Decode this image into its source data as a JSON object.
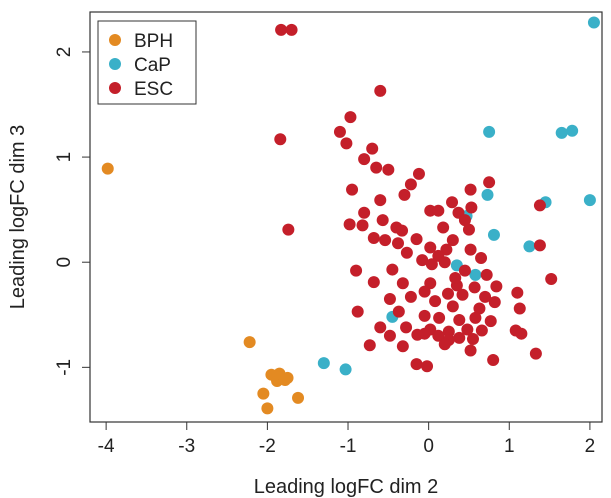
{
  "chart_data": {
    "type": "scatter",
    "xlabel": "Leading logFC dim 2",
    "ylabel": "Leading logFC dim 3",
    "xlim": [
      -4.2,
      2.15
    ],
    "ylim": [
      -1.52,
      2.38
    ],
    "x_ticks": [
      "-4",
      "-3",
      "-2",
      "-1",
      "0",
      "1",
      "2"
    ],
    "y_ticks": [
      "-1",
      "0",
      "1",
      "2"
    ],
    "grid": false,
    "legend_position": "top-left",
    "series": [
      {
        "name": "BPH",
        "color": "#e38a22",
        "points": [
          [
            -3.98,
            0.89
          ],
          [
            -2.22,
            -0.76
          ],
          [
            -2.05,
            -1.25
          ],
          [
            -1.95,
            -1.07
          ],
          [
            -1.88,
            -1.13
          ],
          [
            -1.85,
            -1.06
          ],
          [
            -1.78,
            -1.12
          ],
          [
            -1.75,
            -1.1
          ],
          [
            -1.62,
            -1.29
          ],
          [
            -2.0,
            -1.39
          ]
        ]
      },
      {
        "name": "CaP",
        "color": "#3ab0c8",
        "points": [
          [
            2.05,
            2.28
          ],
          [
            0.75,
            1.24
          ],
          [
            1.65,
            1.23
          ],
          [
            1.78,
            1.25
          ],
          [
            0.73,
            0.64
          ],
          [
            1.45,
            0.57
          ],
          [
            2.0,
            0.59
          ],
          [
            0.47,
            0.44
          ],
          [
            0.81,
            0.26
          ],
          [
            1.25,
            0.15
          ],
          [
            0.35,
            -0.03
          ],
          [
            0.58,
            -0.12
          ],
          [
            -0.45,
            -0.52
          ],
          [
            -1.3,
            -0.96
          ],
          [
            -1.03,
            -1.02
          ]
        ]
      },
      {
        "name": "ESC",
        "color": "#c41f2a",
        "points": [
          [
            -1.83,
            2.21
          ],
          [
            -1.7,
            2.21
          ],
          [
            -1.84,
            1.17
          ],
          [
            -1.74,
            0.31
          ],
          [
            -0.6,
            1.63
          ],
          [
            -0.97,
            1.38
          ],
          [
            -1.1,
            1.24
          ],
          [
            -1.02,
            1.13
          ],
          [
            -0.7,
            1.08
          ],
          [
            -0.8,
            0.98
          ],
          [
            -0.65,
            0.9
          ],
          [
            -0.5,
            0.88
          ],
          [
            -0.12,
            0.84
          ],
          [
            -0.22,
            0.74
          ],
          [
            0.52,
            0.69
          ],
          [
            0.75,
            0.76
          ],
          [
            -0.95,
            0.69
          ],
          [
            -0.6,
            0.59
          ],
          [
            -0.3,
            0.64
          ],
          [
            0.29,
            0.57
          ],
          [
            0.53,
            0.52
          ],
          [
            -0.8,
            0.47
          ],
          [
            0.02,
            0.49
          ],
          [
            0.12,
            0.49
          ],
          [
            0.37,
            0.47
          ],
          [
            0.45,
            0.4
          ],
          [
            -0.98,
            0.36
          ],
          [
            -0.82,
            0.35
          ],
          [
            -0.57,
            0.4
          ],
          [
            -0.4,
            0.33
          ],
          [
            -0.33,
            0.3
          ],
          [
            0.18,
            0.33
          ],
          [
            0.5,
            0.31
          ],
          [
            -0.68,
            0.23
          ],
          [
            -0.54,
            0.21
          ],
          [
            -0.38,
            0.18
          ],
          [
            -0.15,
            0.22
          ],
          [
            0.3,
            0.21
          ],
          [
            0.22,
            0.12
          ],
          [
            -0.27,
            0.09
          ],
          [
            0.02,
            0.14
          ],
          [
            0.52,
            0.12
          ],
          [
            0.12,
            0.06
          ],
          [
            -0.08,
            0.02
          ],
          [
            0.04,
            -0.02
          ],
          [
            0.2,
            0.0
          ],
          [
            0.65,
            0.04
          ],
          [
            -0.9,
            -0.08
          ],
          [
            -0.45,
            -0.07
          ],
          [
            0.45,
            -0.08
          ],
          [
            0.72,
            -0.12
          ],
          [
            -0.68,
            -0.19
          ],
          [
            -0.32,
            -0.2
          ],
          [
            0.02,
            -0.2
          ],
          [
            0.35,
            -0.22
          ],
          [
            0.57,
            -0.24
          ],
          [
            0.84,
            -0.23
          ],
          [
            -0.05,
            -0.28
          ],
          [
            0.24,
            -0.3
          ],
          [
            0.42,
            -0.31
          ],
          [
            0.7,
            -0.33
          ],
          [
            -0.48,
            -0.35
          ],
          [
            -0.22,
            -0.33
          ],
          [
            0.08,
            -0.37
          ],
          [
            0.3,
            -0.42
          ],
          [
            0.63,
            -0.44
          ],
          [
            0.82,
            -0.38
          ],
          [
            -0.88,
            -0.47
          ],
          [
            -0.37,
            -0.47
          ],
          [
            -0.05,
            -0.51
          ],
          [
            0.13,
            -0.53
          ],
          [
            0.38,
            -0.55
          ],
          [
            0.58,
            -0.53
          ],
          [
            0.77,
            -0.56
          ],
          [
            -0.6,
            -0.62
          ],
          [
            -0.28,
            -0.62
          ],
          [
            0.02,
            -0.64
          ],
          [
            0.25,
            -0.66
          ],
          [
            0.48,
            -0.64
          ],
          [
            0.66,
            -0.65
          ],
          [
            -0.48,
            -0.7
          ],
          [
            -0.05,
            -0.68
          ],
          [
            0.12,
            -0.7
          ],
          [
            0.38,
            -0.72
          ],
          [
            -0.14,
            -0.69
          ],
          [
            0.25,
            -0.74
          ],
          [
            0.55,
            -0.73
          ],
          [
            -0.73,
            -0.79
          ],
          [
            -0.32,
            -0.8
          ],
          [
            0.2,
            -0.78
          ],
          [
            0.52,
            -0.84
          ],
          [
            0.8,
            -0.93
          ],
          [
            -0.15,
            -0.97
          ],
          [
            -0.02,
            -0.99
          ],
          [
            1.1,
            -0.29
          ],
          [
            1.13,
            -0.44
          ],
          [
            1.08,
            -0.65
          ],
          [
            1.15,
            -0.68
          ],
          [
            1.33,
            -0.87
          ],
          [
            1.38,
            0.54
          ],
          [
            1.38,
            0.16
          ],
          [
            1.52,
            -0.16
          ],
          [
            0.33,
            -0.15
          ]
        ]
      }
    ]
  }
}
